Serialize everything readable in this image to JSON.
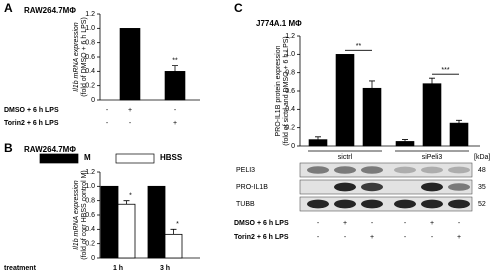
{
  "chart_data": [
    {
      "type": "bar",
      "panel_label": "A",
      "title": "RAW264.7MΦ",
      "y_label": [
        "Il1b mRNA expression",
        "(fold of DMSO + 6 h LPS)"
      ],
      "values": [
        0,
        1.0,
        0.4
      ],
      "errors": [
        null,
        null,
        0.08
      ],
      "annotations": [
        null,
        null,
        "**"
      ],
      "color": "#000000",
      "conditions": [
        {
          "label": "DMSO + 6 h LPS",
          "signs": [
            "-",
            "+",
            "-"
          ]
        },
        {
          "label": "Torin2 + 6 h LPS",
          "signs": [
            "-",
            "-",
            "+"
          ]
        }
      ],
      "ylim": [
        0,
        1.2
      ],
      "yticks": [
        0,
        0.2,
        0.4,
        0.6,
        0.8,
        {
          "value": 1,
          "label": "1.0"
        },
        1.2
      ]
    },
    {
      "type": "grouped_bar",
      "panel_label": "B",
      "title": "RAW264.7MΦ",
      "y_label": [
        "Il1b mRNA expression",
        "(fold of corr HBSS control M)"
      ],
      "x_label": "treatment",
      "categories": [
        "1 h",
        "3 h"
      ],
      "series": [
        {
          "name": "M",
          "color": "#000000",
          "values": [
            1.0,
            1.0
          ],
          "errors": [
            null,
            null
          ],
          "annotations": [
            null,
            null
          ]
        },
        {
          "name": "HBSS",
          "color": "#ffffff",
          "values": [
            0.75,
            0.33
          ],
          "errors": [
            0.05,
            0.07
          ],
          "annotations": [
            "*",
            "*"
          ]
        }
      ],
      "ylim": [
        0,
        1.2
      ],
      "yticks": [
        0,
        0.2,
        0.4,
        0.6,
        0.8,
        {
          "value": 1,
          "label": "1.0"
        },
        1.2
      ]
    },
    {
      "type": "bar",
      "panel_label": "C",
      "title": "J774A.1 MΦ",
      "y_label": [
        "PRO-IL1B protein expression",
        "(fold of sictrl and DMSO + 6 h LPS)"
      ],
      "values": [
        0.07,
        1.0,
        0.63,
        0.05,
        0.68,
        0.25
      ],
      "errors": [
        0.03,
        null,
        0.08,
        0.02,
        0.06,
        0.03
      ],
      "annotations": [
        null,
        "**",
        null,
        null,
        "***",
        null
      ],
      "color": "#000000",
      "groups": [
        "sictrl",
        "siPeli3"
      ],
      "kda_header": "[kDa]",
      "blots": [
        {
          "label": "PELI3",
          "kda": 48
        },
        {
          "label": "PRO-IL1B",
          "kda": 35
        },
        {
          "label": "TUBB",
          "kda": 52
        }
      ],
      "conditions": [
        {
          "label": "DMSO + 6 h LPS",
          "signs": [
            "-",
            "+",
            "-",
            "-",
            "+",
            "-"
          ]
        },
        {
          "label": "Torin2 + 6 h LPS",
          "signs": [
            "-",
            "-",
            "+",
            "-",
            "-",
            "+"
          ]
        }
      ],
      "ylim": [
        0,
        1.2
      ],
      "yticks": [
        0,
        0.2,
        0.4,
        0.6,
        0.8,
        {
          "value": 1,
          "label": "1.0"
        },
        1.2
      ]
    }
  ]
}
